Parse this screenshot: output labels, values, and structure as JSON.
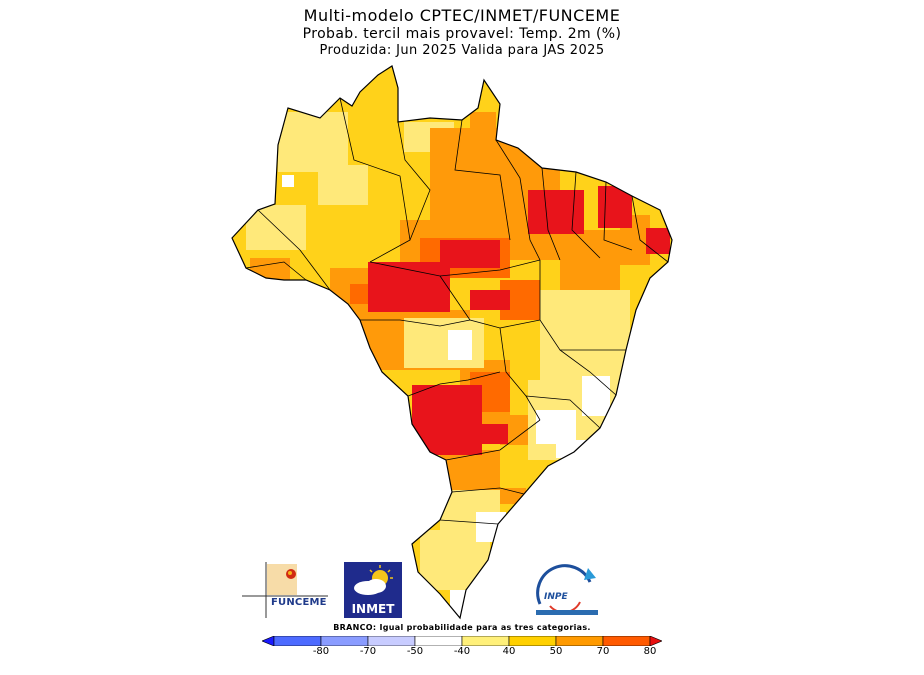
{
  "title": {
    "line1": "Multi-modelo CPTEC/INMET/FUNCEME",
    "line2": "Probab. tercil mais provavel: Temp. 2m (%)",
    "line3": "Produzida: Jun 2025  Valida para JAS 2025"
  },
  "logos": {
    "funceme": "FUNCEME",
    "inmet": "INMET",
    "inpe": "INPE"
  },
  "legend": {
    "note": "BRANCO: Igual probabilidade para as tres categorias.",
    "ticks": [
      "-80",
      "-70",
      "-50",
      "-40",
      "40",
      "50",
      "70",
      "80"
    ],
    "colors": [
      "#1a1aff",
      "#4d6bff",
      "#8a9cff",
      "#c8ccff",
      "#ffffff",
      "#fff07a",
      "#ffd000",
      "#ff9a00",
      "#ff5a00",
      "#e81010"
    ]
  },
  "map_colors": {
    "white": "#ffffff",
    "light_yellow": "#ffe97a",
    "yellow": "#ffd21a",
    "orange": "#ff9a0a",
    "dark_orange": "#ff6a00",
    "red": "#e8141b"
  }
}
